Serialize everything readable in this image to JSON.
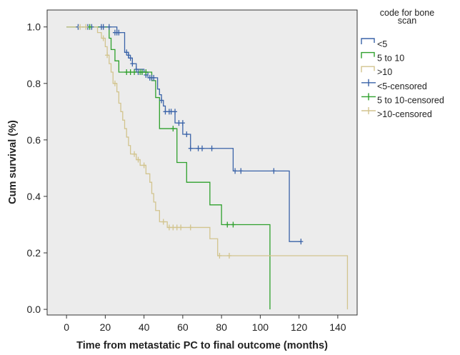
{
  "chart_data": {
    "type": "line",
    "subtype": "kaplan-meier step",
    "xlabel": "Time from metastatic PC to final outcome (months)",
    "ylabel": "Cum survival (%)",
    "xlim": [
      -10,
      150
    ],
    "ylim": [
      -0.02,
      1.06
    ],
    "x_ticks": [
      0,
      20,
      40,
      60,
      80,
      100,
      120,
      140
    ],
    "y_ticks": [
      0.0,
      0.2,
      0.4,
      0.6,
      0.8,
      1.0
    ],
    "y_tick_labels": [
      "0.0",
      "0.2",
      "0.4",
      "0.6",
      "0.8",
      "1.0"
    ],
    "grid": false,
    "background": "#ececec",
    "legend": {
      "title": "code for bone scan",
      "title_lines": [
        "code for bone",
        "scan"
      ],
      "placement": "right",
      "entries": [
        {
          "label": "<5",
          "kind": "line",
          "series": 0
        },
        {
          "label": "5 to 10",
          "kind": "line",
          "series": 1
        },
        {
          "label": ">10",
          "kind": "line",
          "series": 2
        },
        {
          "label": "<5-censored",
          "kind": "censor",
          "series": 0
        },
        {
          "label": "5 to 10-censored",
          "kind": "censor",
          "series": 1
        },
        {
          "label": ">10-censored",
          "kind": "censor",
          "series": 2
        }
      ]
    },
    "series": [
      {
        "name": "<5",
        "color": "#3a63a8",
        "steps": [
          [
            0,
            1.0
          ],
          [
            26,
            0.98
          ],
          [
            30,
            0.91
          ],
          [
            32,
            0.89
          ],
          [
            34,
            0.87
          ],
          [
            36,
            0.85
          ],
          [
            40,
            0.84
          ],
          [
            42,
            0.82
          ],
          [
            47,
            0.78
          ],
          [
            48,
            0.76
          ],
          [
            49,
            0.74
          ],
          [
            50,
            0.72
          ],
          [
            51,
            0.7
          ],
          [
            56,
            0.66
          ],
          [
            60,
            0.62
          ],
          [
            64,
            0.57
          ],
          [
            86,
            0.49
          ],
          [
            115,
            0.24
          ],
          [
            121,
            0.24
          ]
        ],
        "censored": [
          [
            6,
            1.0
          ],
          [
            11,
            1.0
          ],
          [
            13,
            1.0
          ],
          [
            18,
            1.0
          ],
          [
            19,
            1.0
          ],
          [
            22,
            1.0
          ],
          [
            25,
            0.98
          ],
          [
            26,
            0.98
          ],
          [
            27,
            0.98
          ],
          [
            31,
            0.91
          ],
          [
            32,
            0.9
          ],
          [
            33,
            0.89
          ],
          [
            34,
            0.87
          ],
          [
            36,
            0.85
          ],
          [
            37,
            0.84
          ],
          [
            39,
            0.84
          ],
          [
            41,
            0.83
          ],
          [
            43,
            0.82
          ],
          [
            44,
            0.82
          ],
          [
            45,
            0.82
          ],
          [
            49,
            0.74
          ],
          [
            51,
            0.7
          ],
          [
            53,
            0.7
          ],
          [
            54,
            0.7
          ],
          [
            56,
            0.7
          ],
          [
            58,
            0.66
          ],
          [
            60,
            0.66
          ],
          [
            62,
            0.62
          ],
          [
            64,
            0.57
          ],
          [
            68,
            0.57
          ],
          [
            70,
            0.57
          ],
          [
            75,
            0.57
          ],
          [
            87,
            0.49
          ],
          [
            90,
            0.49
          ],
          [
            107,
            0.49
          ],
          [
            121,
            0.24
          ]
        ]
      },
      {
        "name": "5 to 10",
        "color": "#2ea02c",
        "steps": [
          [
            0,
            1.0
          ],
          [
            22,
            0.96
          ],
          [
            23,
            0.92
          ],
          [
            25,
            0.88
          ],
          [
            27,
            0.84
          ],
          [
            44,
            0.81
          ],
          [
            46,
            0.75
          ],
          [
            48,
            0.64
          ],
          [
            54,
            0.64
          ],
          [
            57,
            0.52
          ],
          [
            62,
            0.45
          ],
          [
            74,
            0.37
          ],
          [
            80,
            0.3
          ],
          [
            105,
            0.0
          ]
        ],
        "censored": [
          [
            12,
            1.0
          ],
          [
            31,
            0.84
          ],
          [
            33,
            0.84
          ],
          [
            35,
            0.84
          ],
          [
            38,
            0.84
          ],
          [
            39,
            0.84
          ],
          [
            41,
            0.84
          ],
          [
            55,
            0.64
          ],
          [
            83,
            0.3
          ],
          [
            86,
            0.3
          ]
        ]
      },
      {
        "name": ">10",
        "color": "#d2c48e",
        "steps": [
          [
            0,
            1.0
          ],
          [
            16,
            0.98
          ],
          [
            18,
            0.96
          ],
          [
            20,
            0.93
          ],
          [
            21,
            0.9
          ],
          [
            22,
            0.87
          ],
          [
            23,
            0.84
          ],
          [
            24,
            0.8
          ],
          [
            26,
            0.77
          ],
          [
            27,
            0.73
          ],
          [
            28,
            0.7
          ],
          [
            29,
            0.67
          ],
          [
            30,
            0.64
          ],
          [
            31,
            0.61
          ],
          [
            32,
            0.58
          ],
          [
            33,
            0.55
          ],
          [
            36,
            0.53
          ],
          [
            38,
            0.51
          ],
          [
            41,
            0.48
          ],
          [
            43,
            0.45
          ],
          [
            44,
            0.41
          ],
          [
            45,
            0.38
          ],
          [
            46,
            0.35
          ],
          [
            48,
            0.31
          ],
          [
            52,
            0.29
          ],
          [
            55,
            0.29
          ],
          [
            74,
            0.25
          ],
          [
            78,
            0.19
          ],
          [
            145,
            0.0
          ]
        ],
        "censored": [
          [
            7,
            1.0
          ],
          [
            10,
            1.0
          ],
          [
            19,
            0.96
          ],
          [
            21,
            0.9
          ],
          [
            25,
            0.8
          ],
          [
            35,
            0.55
          ],
          [
            37,
            0.53
          ],
          [
            40,
            0.51
          ],
          [
            50,
            0.31
          ],
          [
            53,
            0.29
          ],
          [
            55,
            0.29
          ],
          [
            57,
            0.29
          ],
          [
            59,
            0.29
          ],
          [
            64,
            0.29
          ],
          [
            79,
            0.19
          ],
          [
            84,
            0.19
          ]
        ]
      }
    ]
  }
}
